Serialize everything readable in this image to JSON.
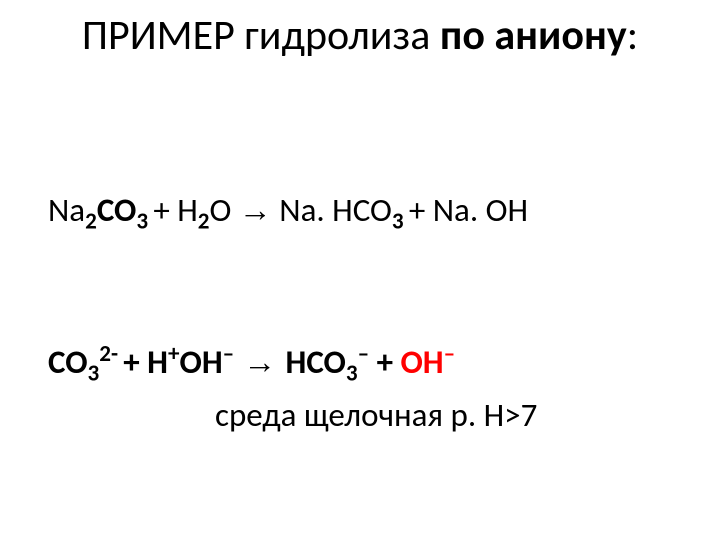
{
  "title": {
    "part1": "ПРИМЕР гидролиза ",
    "part2_bold": "по аниону",
    "part3": ":"
  },
  "equation1": {
    "t1": "Na",
    "sub1": "2",
    "t2": "CO",
    "sub2": "3 ",
    "t3": "+ H",
    "sub3": "2",
    "t4": "O ",
    "arrow": "→",
    "t5": " Na. HCO",
    "sub4": "3 ",
    "t6": "+ Na. OH"
  },
  "equation2": {
    "t1": "CO",
    "sub1": "3",
    "sup1": "2- ",
    "t2": "+ H",
    "sup2": "+",
    "t3": "OH",
    "sup3": "–",
    "arrow": " → ",
    "t4": "HCO",
    "sub2": "3",
    "sup4": "–",
    "t5": " + ",
    "t6_red": "OH",
    "sup5_red": "–"
  },
  "conclusion": {
    "text": "среда щелочная p. H>7"
  },
  "colors": {
    "text": "#000000",
    "accent": "#ff0000",
    "background": "#ffffff"
  }
}
